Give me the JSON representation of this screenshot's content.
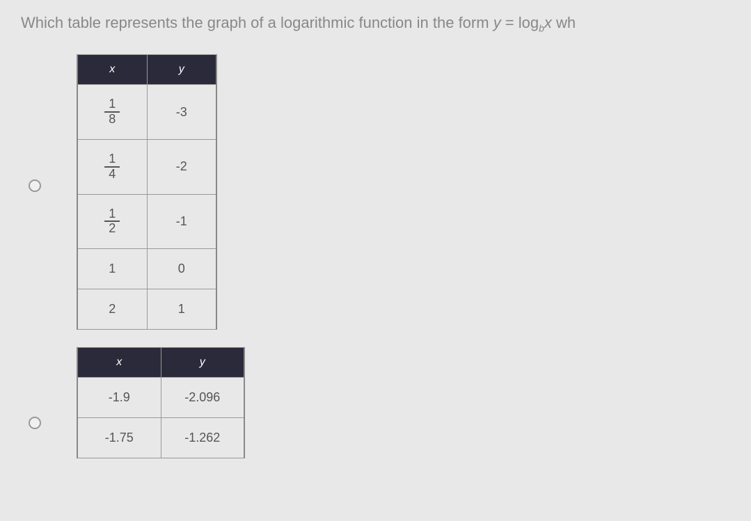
{
  "question": {
    "prefix": "Which table represents the graph of a logarithmic function in the form ",
    "equation_y": "y",
    "equation_eq": " = ",
    "equation_log": "log",
    "equation_sub": "b",
    "equation_x": "x",
    "suffix": "  wh"
  },
  "table1": {
    "header_x": "x",
    "header_y": "y",
    "rows": [
      {
        "x_type": "fraction",
        "x_num": "1",
        "x_den": "8",
        "y": "-3"
      },
      {
        "x_type": "fraction",
        "x_num": "1",
        "x_den": "4",
        "y": "-2"
      },
      {
        "x_type": "fraction",
        "x_num": "1",
        "x_den": "2",
        "y": "-1"
      },
      {
        "x_type": "plain",
        "x": "1",
        "y": "0"
      },
      {
        "x_type": "plain",
        "x": "2",
        "y": "1"
      }
    ]
  },
  "table2": {
    "header_x": "x",
    "header_y": "y",
    "rows": [
      {
        "x": "-1.9",
        "y": "-2.096"
      },
      {
        "x": "-1.75",
        "y": "-1.262"
      }
    ]
  },
  "styling": {
    "background_color": "#e8e8e8",
    "header_bg_color": "#2a2a3a",
    "header_text_color": "#ffffff",
    "cell_text_color": "#555555",
    "border_color": "#999999",
    "question_color": "#888888",
    "question_fontsize": 22,
    "cell_fontsize": 18,
    "table1_col_width": 100,
    "table2_col_width": 120
  }
}
